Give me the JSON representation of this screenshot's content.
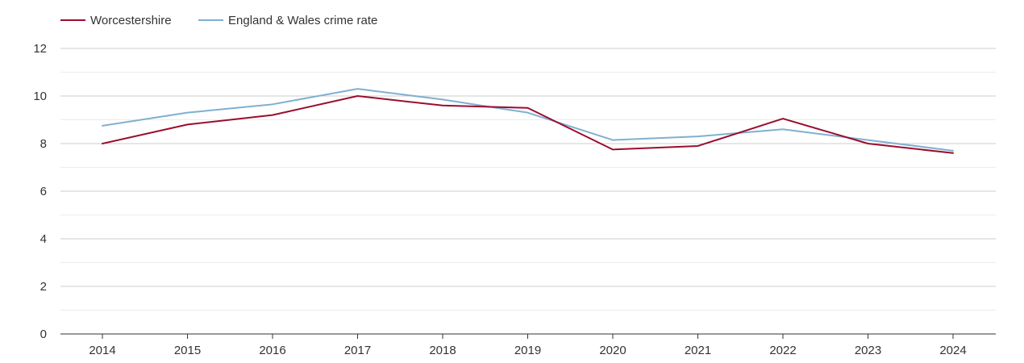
{
  "chart_data": {
    "type": "line",
    "title": "",
    "xlabel": "",
    "ylabel": "",
    "x": [
      "2014",
      "2015",
      "2016",
      "2017",
      "2018",
      "2019",
      "2020",
      "2021",
      "2022",
      "2023",
      "2024"
    ],
    "ylim": [
      0,
      12
    ],
    "yticks": [
      0,
      2,
      4,
      6,
      8,
      10,
      12
    ],
    "yticks_labels": [
      "0",
      "2",
      "4",
      "6",
      "8",
      "10",
      "12"
    ],
    "grid": true,
    "legend_position": "top-left",
    "series": [
      {
        "name": "Worcestershire",
        "color": "#9b0d2f",
        "values": [
          8.0,
          8.8,
          9.2,
          10.0,
          9.6,
          9.5,
          7.75,
          7.9,
          9.05,
          8.0,
          7.6
        ]
      },
      {
        "name": "England & Wales crime rate",
        "color": "#7fb0d1",
        "values": [
          8.75,
          9.3,
          9.65,
          10.3,
          9.85,
          9.3,
          8.15,
          8.3,
          8.6,
          8.15,
          7.7
        ]
      }
    ]
  }
}
